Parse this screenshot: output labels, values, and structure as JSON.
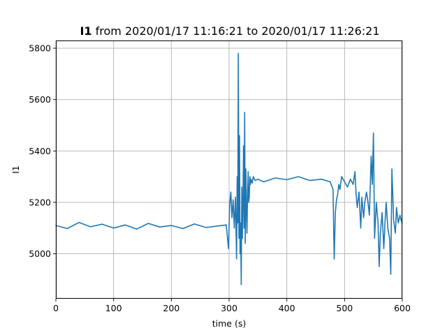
{
  "chart_data": {
    "type": "line",
    "title": {
      "bold": "I1",
      "rest": " from 2020/01/17 11:16:21 to 2020/01/17 11:26:21"
    },
    "xlabel": "time (s)",
    "ylabel": "I1",
    "xlim": [
      0,
      600
    ],
    "ylim": [
      4825,
      5830
    ],
    "xticks": [
      {
        "value": 0,
        "label": "0"
      },
      {
        "value": 100,
        "label": "100"
      },
      {
        "value": 200,
        "label": "200"
      },
      {
        "value": 300,
        "label": "300"
      },
      {
        "value": 400,
        "label": "400"
      },
      {
        "value": 500,
        "label": "500"
      },
      {
        "value": 600,
        "label": "600"
      }
    ],
    "yticks": [
      {
        "value": 5000,
        "label": "5000"
      },
      {
        "value": 5200,
        "label": "5200"
      },
      {
        "value": 5400,
        "label": "5400"
      },
      {
        "value": 5600,
        "label": "5600"
      },
      {
        "value": 5800,
        "label": "5800"
      }
    ],
    "grid": true,
    "line_color": "#1f77b4",
    "series": [
      {
        "x": [
          0,
          20,
          40,
          60,
          80,
          100,
          120,
          140,
          160,
          180,
          200,
          220,
          240,
          260,
          280,
          295,
          299,
          301,
          303,
          305,
          307,
          309,
          311,
          313,
          314,
          315,
          316,
          317,
          318,
          319,
          320,
          321,
          322,
          323,
          324,
          325,
          326,
          327,
          328,
          329,
          330,
          331,
          332,
          333,
          334,
          335,
          336,
          337,
          338,
          340,
          342,
          345,
          350,
          360,
          380,
          400,
          420,
          440,
          460,
          475,
          480,
          482,
          484,
          486,
          488,
          490,
          492,
          495,
          500,
          505,
          510,
          515,
          518,
          520,
          522,
          525,
          528,
          530,
          533,
          535,
          538,
          540,
          543,
          546,
          548,
          550,
          552,
          555,
          558,
          560,
          562,
          565,
          568,
          570,
          572,
          575,
          578,
          580,
          582,
          585,
          588,
          590,
          593,
          596,
          598,
          600
        ],
        "y": [
          5110,
          5098,
          5122,
          5105,
          5115,
          5100,
          5112,
          5096,
          5118,
          5104,
          5110,
          5098,
          5116,
          5102,
          5108,
          5112,
          5020,
          5190,
          5240,
          5140,
          5210,
          5100,
          5220,
          4980,
          5300,
          5120,
          5780,
          5060,
          5460,
          5000,
          5120,
          4880,
          5260,
          5060,
          5180,
          5420,
          5100,
          5550,
          5040,
          5330,
          5180,
          5080,
          5240,
          5320,
          5200,
          5220,
          5300,
          5270,
          5290,
          5275,
          5300,
          5285,
          5290,
          5280,
          5295,
          5288,
          5300,
          5285,
          5290,
          5280,
          5250,
          4980,
          5160,
          5210,
          5230,
          5270,
          5250,
          5300,
          5280,
          5260,
          5290,
          5270,
          5320,
          5230,
          5180,
          5240,
          5100,
          5220,
          5140,
          5200,
          5240,
          5210,
          5150,
          5380,
          5270,
          5470,
          5060,
          5200,
          5120,
          4950,
          5080,
          5160,
          5020,
          5120,
          5200,
          5100,
          5060,
          4920,
          5330,
          5130,
          5080,
          5180,
          5120,
          5150,
          5130,
          5120
        ]
      }
    ]
  }
}
